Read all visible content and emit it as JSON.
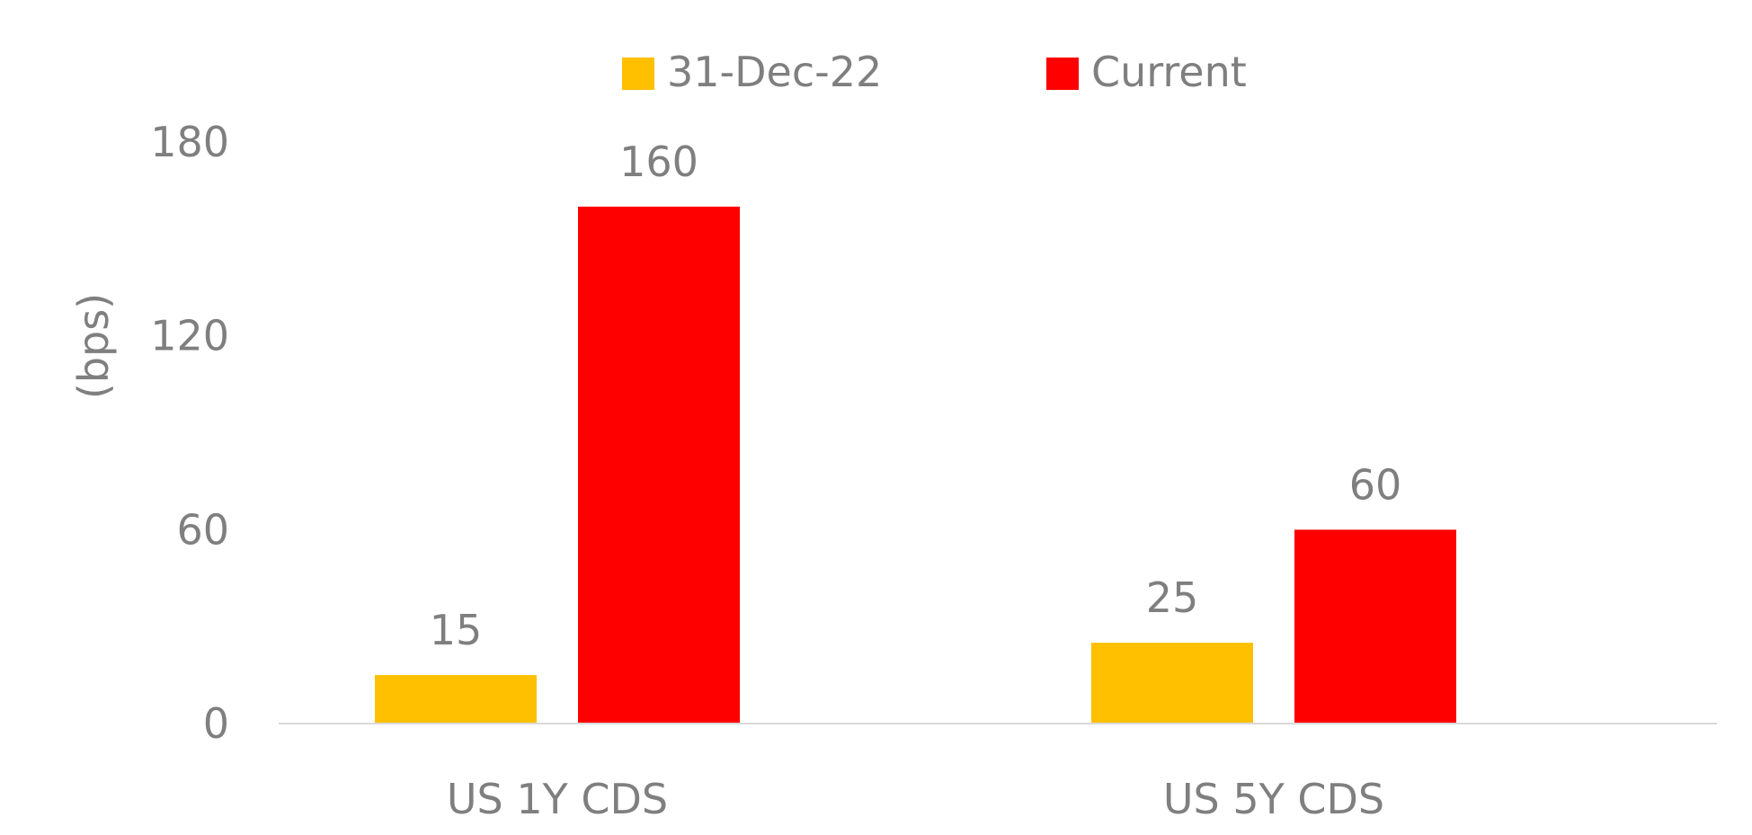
{
  "chart_data": {
    "type": "bar",
    "title": "",
    "xlabel": "",
    "ylabel": "(bps)",
    "categories": [
      "US 1Y CDS",
      "US 5Y CDS"
    ],
    "series": [
      {
        "name": "31-Dec-22",
        "color": "#FFC000",
        "values": [
          15,
          25
        ],
        "labels": [
          "15",
          "25"
        ]
      },
      {
        "name": "Current",
        "color": "#FF0000",
        "values": [
          160,
          60
        ],
        "labels": [
          "160",
          "60"
        ]
      }
    ],
    "ylim": [
      0,
      180
    ],
    "yticks": [
      0,
      60,
      120,
      180
    ],
    "ytick_labels": [
      "0",
      "60",
      "120",
      "180"
    ],
    "grid": false,
    "legend_position": "top-center",
    "axis_color": "#d9d9d9",
    "text_color": "#7f7f7f"
  }
}
